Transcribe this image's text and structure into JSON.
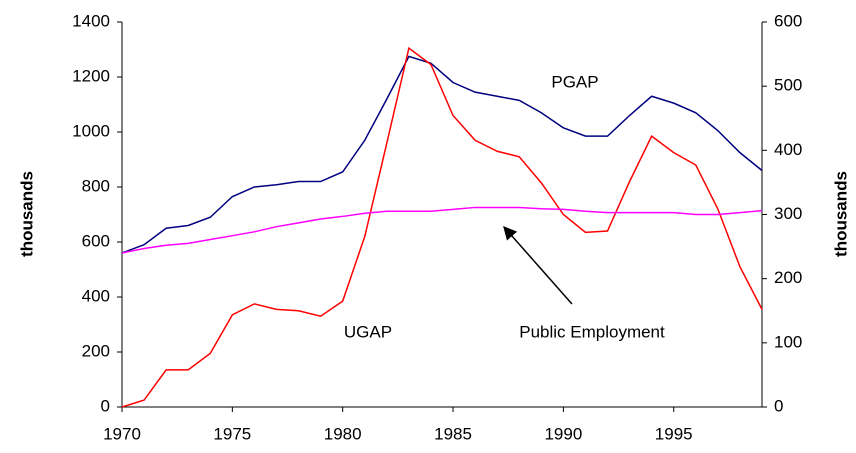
{
  "chart_data": {
    "type": "line",
    "x": [
      1970,
      1971,
      1972,
      1973,
      1974,
      1975,
      1976,
      1977,
      1978,
      1979,
      1980,
      1981,
      1982,
      1983,
      1984,
      1985,
      1986,
      1987,
      1988,
      1989,
      1990,
      1991,
      1992,
      1993,
      1994,
      1995,
      1996,
      1997,
      1998,
      1999
    ],
    "xlim": [
      1970,
      1999
    ],
    "xticks": [
      1970,
      1975,
      1980,
      1985,
      1990,
      1995
    ],
    "ylim": [
      0,
      1400
    ],
    "yticks": [
      0,
      200,
      400,
      600,
      800,
      1000,
      1200,
      1400
    ],
    "y2lim": [
      0,
      600
    ],
    "y2ticks": [
      0,
      100,
      200,
      300,
      400,
      500,
      600
    ],
    "ylabel": "thousands",
    "y2label": "thousands",
    "series": [
      {
        "name": "PGAP",
        "color": "#000080",
        "values": [
          560,
          590,
          650,
          660,
          690,
          765,
          800,
          808,
          820,
          820,
          855,
          970,
          1120,
          1275,
          1250,
          1180,
          1145,
          1130,
          1115,
          1070,
          1015,
          985,
          985,
          1060,
          1130,
          1105,
          1070,
          1005,
          925,
          860
        ]
      },
      {
        "name": "UGAP",
        "color": "#ff0000",
        "values": [
          0,
          25,
          135,
          135,
          195,
          335,
          375,
          355,
          350,
          330,
          385,
          620,
          960,
          1305,
          1245,
          1060,
          970,
          930,
          910,
          815,
          700,
          635,
          640,
          820,
          985,
          925,
          880,
          720,
          510,
          355
        ]
      },
      {
        "name": "Public Employment",
        "color": "#ff00ff",
        "axis": "y2",
        "values": [
          240,
          247,
          252,
          255,
          261,
          267,
          273,
          281,
          287,
          293,
          297,
          302,
          305,
          305,
          305,
          308,
          311,
          311,
          311,
          309,
          308,
          305,
          303,
          303,
          303,
          303,
          300,
          300,
          303,
          306
        ]
      }
    ],
    "annotations": [
      "PGAP",
      "UGAP",
      "Public Employment"
    ]
  }
}
